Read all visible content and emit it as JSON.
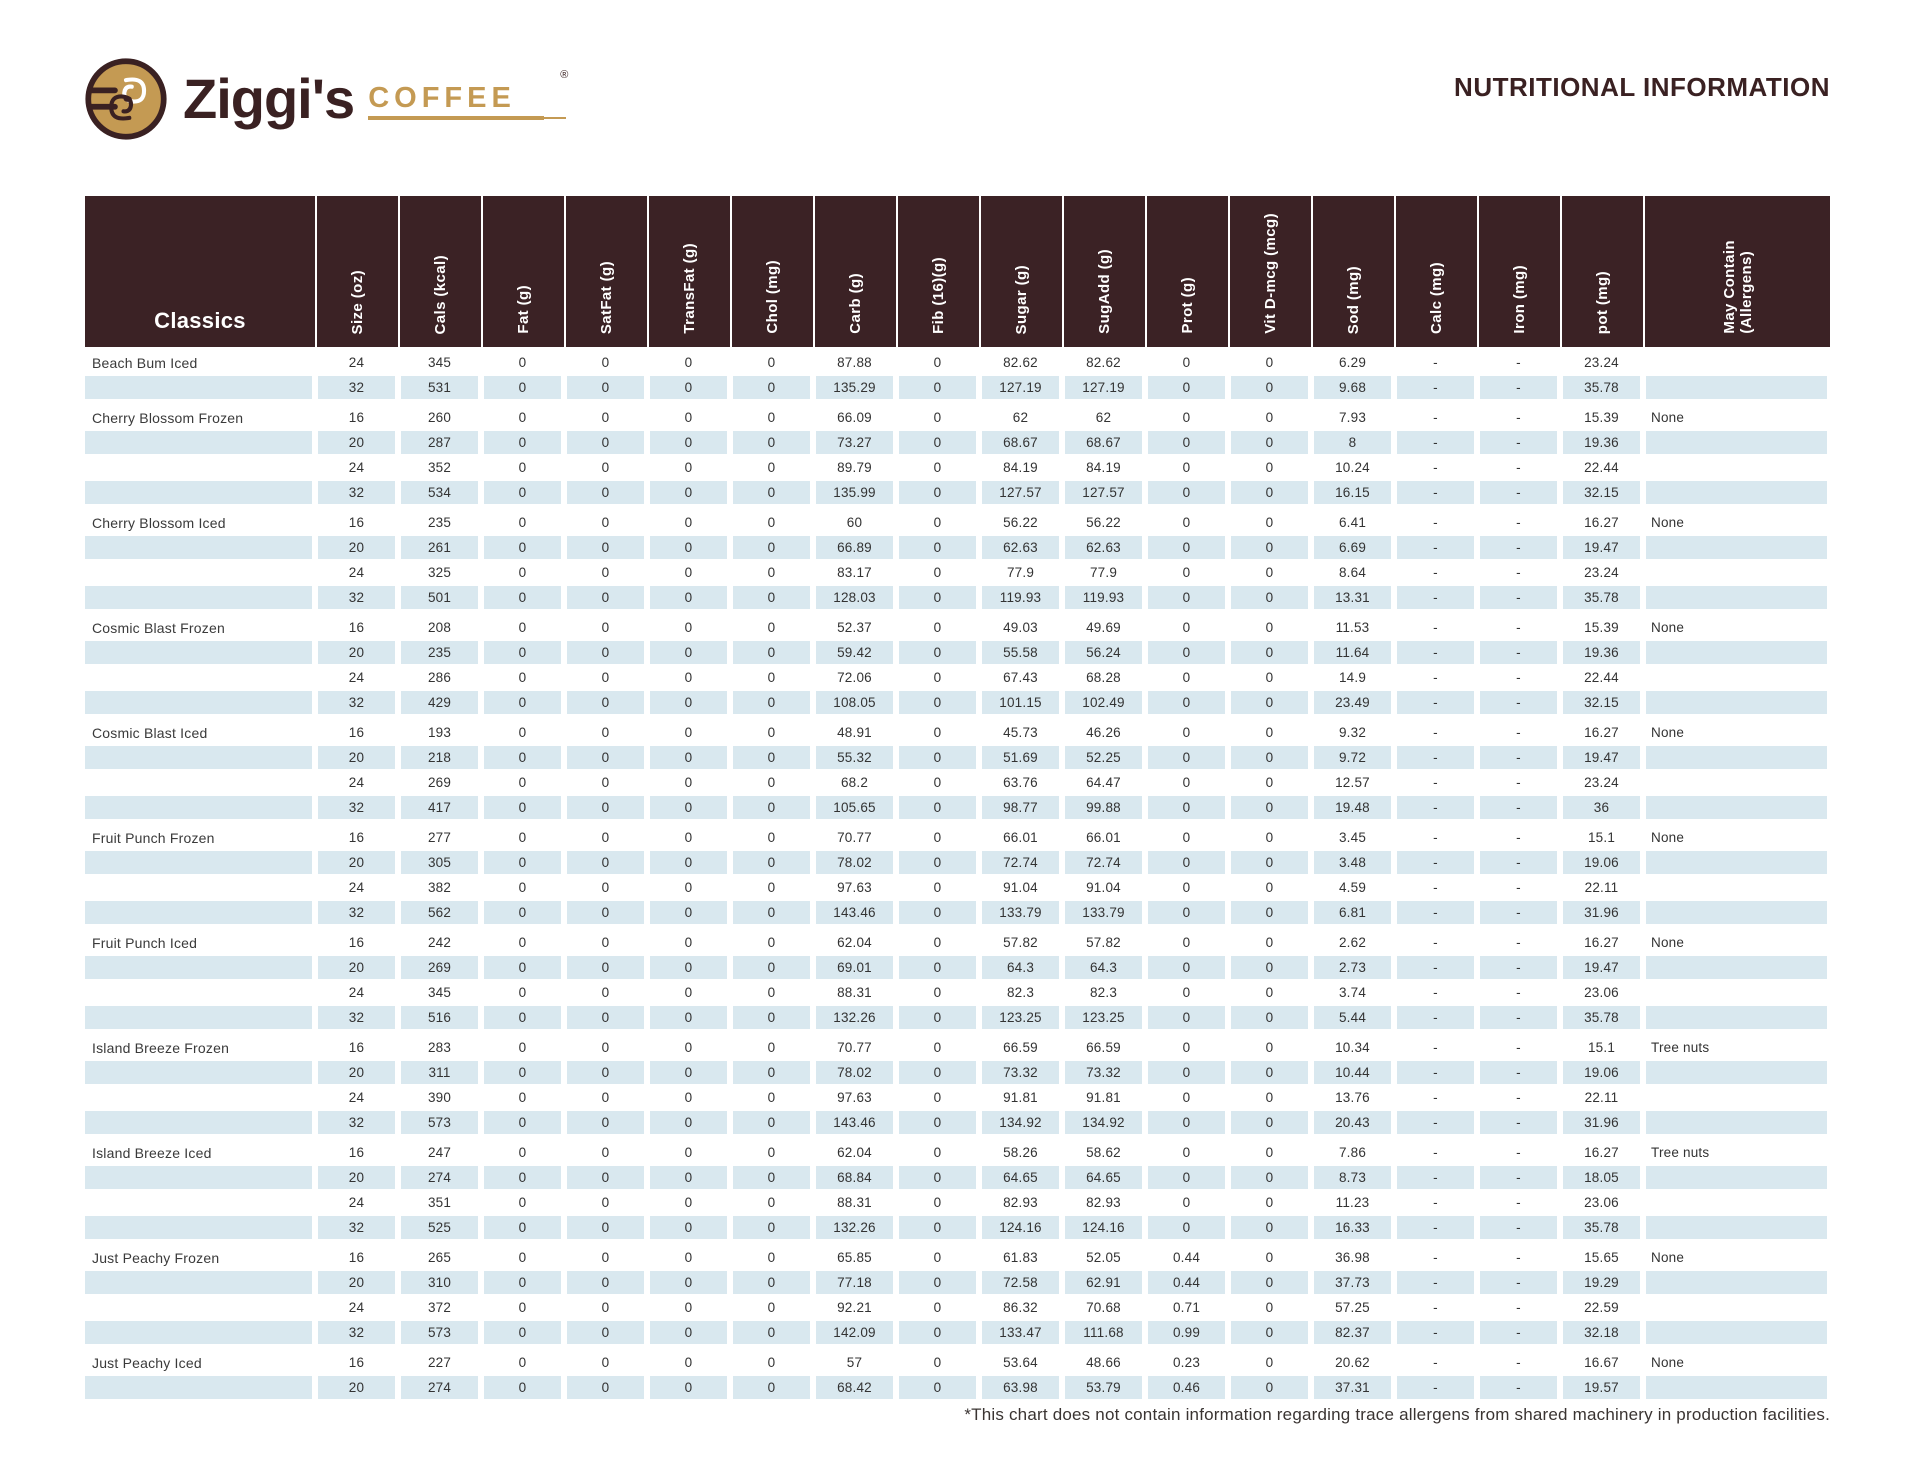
{
  "brand": {
    "name": "Ziggi's",
    "word": "COFFEE",
    "reg": "®"
  },
  "page_title": "NUTRITIONAL INFORMATION",
  "colors": {
    "brown": "#3B2225",
    "stripe": "#D9E8EF",
    "gold": "#C49A53"
  },
  "table": {
    "category_header": "Classics",
    "columns": [
      "Size (oz)",
      "Cals (kcal)",
      "Fat (g)",
      "SatFat (g)",
      "TransFat (g)",
      "Chol (mg)",
      "Carb (g)",
      "Fib (16)(g)",
      "Sugar (g)",
      "SugAdd (g)",
      "Prot (g)",
      "Vit D-mcg (mcg)",
      "Sod (mg)",
      "Calc (mg)",
      "Iron (mg)",
      "pot (mg)",
      "May Contain\n(Allergens)"
    ],
    "groups": [
      {
        "name": "Beach Bum Iced",
        "rows": [
          [
            "24",
            "345",
            "0",
            "0",
            "0",
            "0",
            "87.88",
            "0",
            "82.62",
            "82.62",
            "0",
            "0",
            "6.29",
            "-",
            "-",
            "23.24",
            ""
          ],
          [
            "32",
            "531",
            "0",
            "0",
            "0",
            "0",
            "135.29",
            "0",
            "127.19",
            "127.19",
            "0",
            "0",
            "9.68",
            "-",
            "-",
            "35.78",
            ""
          ]
        ]
      },
      {
        "name": "Cherry Blossom Frozen",
        "rows": [
          [
            "16",
            "260",
            "0",
            "0",
            "0",
            "0",
            "66.09",
            "0",
            "62",
            "62",
            "0",
            "0",
            "7.93",
            "-",
            "-",
            "15.39",
            "None"
          ],
          [
            "20",
            "287",
            "0",
            "0",
            "0",
            "0",
            "73.27",
            "0",
            "68.67",
            "68.67",
            "0",
            "0",
            "8",
            "-",
            "-",
            "19.36",
            ""
          ],
          [
            "24",
            "352",
            "0",
            "0",
            "0",
            "0",
            "89.79",
            "0",
            "84.19",
            "84.19",
            "0",
            "0",
            "10.24",
            "-",
            "-",
            "22.44",
            ""
          ],
          [
            "32",
            "534",
            "0",
            "0",
            "0",
            "0",
            "135.99",
            "0",
            "127.57",
            "127.57",
            "0",
            "0",
            "16.15",
            "-",
            "-",
            "32.15",
            ""
          ]
        ]
      },
      {
        "name": "Cherry Blossom Iced",
        "rows": [
          [
            "16",
            "235",
            "0",
            "0",
            "0",
            "0",
            "60",
            "0",
            "56.22",
            "56.22",
            "0",
            "0",
            "6.41",
            "-",
            "-",
            "16.27",
            "None"
          ],
          [
            "20",
            "261",
            "0",
            "0",
            "0",
            "0",
            "66.89",
            "0",
            "62.63",
            "62.63",
            "0",
            "0",
            "6.69",
            "-",
            "-",
            "19.47",
            ""
          ],
          [
            "24",
            "325",
            "0",
            "0",
            "0",
            "0",
            "83.17",
            "0",
            "77.9",
            "77.9",
            "0",
            "0",
            "8.64",
            "-",
            "-",
            "23.24",
            ""
          ],
          [
            "32",
            "501",
            "0",
            "0",
            "0",
            "0",
            "128.03",
            "0",
            "119.93",
            "119.93",
            "0",
            "0",
            "13.31",
            "-",
            "-",
            "35.78",
            ""
          ]
        ]
      },
      {
        "name": "Cosmic Blast Frozen",
        "rows": [
          [
            "16",
            "208",
            "0",
            "0",
            "0",
            "0",
            "52.37",
            "0",
            "49.03",
            "49.69",
            "0",
            "0",
            "11.53",
            "-",
            "-",
            "15.39",
            "None"
          ],
          [
            "20",
            "235",
            "0",
            "0",
            "0",
            "0",
            "59.42",
            "0",
            "55.58",
            "56.24",
            "0",
            "0",
            "11.64",
            "-",
            "-",
            "19.36",
            ""
          ],
          [
            "24",
            "286",
            "0",
            "0",
            "0",
            "0",
            "72.06",
            "0",
            "67.43",
            "68.28",
            "0",
            "0",
            "14.9",
            "-",
            "-",
            "22.44",
            ""
          ],
          [
            "32",
            "429",
            "0",
            "0",
            "0",
            "0",
            "108.05",
            "0",
            "101.15",
            "102.49",
            "0",
            "0",
            "23.49",
            "-",
            "-",
            "32.15",
            ""
          ]
        ]
      },
      {
        "name": "Cosmic Blast Iced",
        "rows": [
          [
            "16",
            "193",
            "0",
            "0",
            "0",
            "0",
            "48.91",
            "0",
            "45.73",
            "46.26",
            "0",
            "0",
            "9.32",
            "-",
            "-",
            "16.27",
            "None"
          ],
          [
            "20",
            "218",
            "0",
            "0",
            "0",
            "0",
            "55.32",
            "0",
            "51.69",
            "52.25",
            "0",
            "0",
            "9.72",
            "-",
            "-",
            "19.47",
            ""
          ],
          [
            "24",
            "269",
            "0",
            "0",
            "0",
            "0",
            "68.2",
            "0",
            "63.76",
            "64.47",
            "0",
            "0",
            "12.57",
            "-",
            "-",
            "23.24",
            ""
          ],
          [
            "32",
            "417",
            "0",
            "0",
            "0",
            "0",
            "105.65",
            "0",
            "98.77",
            "99.88",
            "0",
            "0",
            "19.48",
            "-",
            "-",
            "36",
            ""
          ]
        ]
      },
      {
        "name": "Fruit Punch Frozen",
        "rows": [
          [
            "16",
            "277",
            "0",
            "0",
            "0",
            "0",
            "70.77",
            "0",
            "66.01",
            "66.01",
            "0",
            "0",
            "3.45",
            "-",
            "-",
            "15.1",
            "None"
          ],
          [
            "20",
            "305",
            "0",
            "0",
            "0",
            "0",
            "78.02",
            "0",
            "72.74",
            "72.74",
            "0",
            "0",
            "3.48",
            "-",
            "-",
            "19.06",
            ""
          ],
          [
            "24",
            "382",
            "0",
            "0",
            "0",
            "0",
            "97.63",
            "0",
            "91.04",
            "91.04",
            "0",
            "0",
            "4.59",
            "-",
            "-",
            "22.11",
            ""
          ],
          [
            "32",
            "562",
            "0",
            "0",
            "0",
            "0",
            "143.46",
            "0",
            "133.79",
            "133.79",
            "0",
            "0",
            "6.81",
            "-",
            "-",
            "31.96",
            ""
          ]
        ]
      },
      {
        "name": "Fruit Punch Iced",
        "rows": [
          [
            "16",
            "242",
            "0",
            "0",
            "0",
            "0",
            "62.04",
            "0",
            "57.82",
            "57.82",
            "0",
            "0",
            "2.62",
            "-",
            "-",
            "16.27",
            "None"
          ],
          [
            "20",
            "269",
            "0",
            "0",
            "0",
            "0",
            "69.01",
            "0",
            "64.3",
            "64.3",
            "0",
            "0",
            "2.73",
            "-",
            "-",
            "19.47",
            ""
          ],
          [
            "24",
            "345",
            "0",
            "0",
            "0",
            "0",
            "88.31",
            "0",
            "82.3",
            "82.3",
            "0",
            "0",
            "3.74",
            "-",
            "-",
            "23.06",
            ""
          ],
          [
            "32",
            "516",
            "0",
            "0",
            "0",
            "0",
            "132.26",
            "0",
            "123.25",
            "123.25",
            "0",
            "0",
            "5.44",
            "-",
            "-",
            "35.78",
            ""
          ]
        ]
      },
      {
        "name": "Island Breeze Frozen",
        "rows": [
          [
            "16",
            "283",
            "0",
            "0",
            "0",
            "0",
            "70.77",
            "0",
            "66.59",
            "66.59",
            "0",
            "0",
            "10.34",
            "-",
            "-",
            "15.1",
            "Tree nuts"
          ],
          [
            "20",
            "311",
            "0",
            "0",
            "0",
            "0",
            "78.02",
            "0",
            "73.32",
            "73.32",
            "0",
            "0",
            "10.44",
            "-",
            "-",
            "19.06",
            ""
          ],
          [
            "24",
            "390",
            "0",
            "0",
            "0",
            "0",
            "97.63",
            "0",
            "91.81",
            "91.81",
            "0",
            "0",
            "13.76",
            "-",
            "-",
            "22.11",
            ""
          ],
          [
            "32",
            "573",
            "0",
            "0",
            "0",
            "0",
            "143.46",
            "0",
            "134.92",
            "134.92",
            "0",
            "0",
            "20.43",
            "-",
            "-",
            "31.96",
            ""
          ]
        ]
      },
      {
        "name": "Island Breeze Iced",
        "rows": [
          [
            "16",
            "247",
            "0",
            "0",
            "0",
            "0",
            "62.04",
            "0",
            "58.26",
            "58.62",
            "0",
            "0",
            "7.86",
            "-",
            "-",
            "16.27",
            "Tree nuts"
          ],
          [
            "20",
            "274",
            "0",
            "0",
            "0",
            "0",
            "68.84",
            "0",
            "64.65",
            "64.65",
            "0",
            "0",
            "8.73",
            "-",
            "-",
            "18.05",
            ""
          ],
          [
            "24",
            "351",
            "0",
            "0",
            "0",
            "0",
            "88.31",
            "0",
            "82.93",
            "82.93",
            "0",
            "0",
            "11.23",
            "-",
            "-",
            "23.06",
            ""
          ],
          [
            "32",
            "525",
            "0",
            "0",
            "0",
            "0",
            "132.26",
            "0",
            "124.16",
            "124.16",
            "0",
            "0",
            "16.33",
            "-",
            "-",
            "35.78",
            ""
          ]
        ]
      },
      {
        "name": "Just Peachy Frozen",
        "rows": [
          [
            "16",
            "265",
            "0",
            "0",
            "0",
            "0",
            "65.85",
            "0",
            "61.83",
            "52.05",
            "0.44",
            "0",
            "36.98",
            "-",
            "-",
            "15.65",
            "None"
          ],
          [
            "20",
            "310",
            "0",
            "0",
            "0",
            "0",
            "77.18",
            "0",
            "72.58",
            "62.91",
            "0.44",
            "0",
            "37.73",
            "-",
            "-",
            "19.29",
            ""
          ],
          [
            "24",
            "372",
            "0",
            "0",
            "0",
            "0",
            "92.21",
            "0",
            "86.32",
            "70.68",
            "0.71",
            "0",
            "57.25",
            "-",
            "-",
            "22.59",
            ""
          ],
          [
            "32",
            "573",
            "0",
            "0",
            "0",
            "0",
            "142.09",
            "0",
            "133.47",
            "111.68",
            "0.99",
            "0",
            "82.37",
            "-",
            "-",
            "32.18",
            ""
          ]
        ]
      },
      {
        "name": "Just Peachy Iced",
        "rows": [
          [
            "16",
            "227",
            "0",
            "0",
            "0",
            "0",
            "57",
            "0",
            "53.64",
            "48.66",
            "0.23",
            "0",
            "20.62",
            "-",
            "-",
            "16.67",
            "None"
          ],
          [
            "20",
            "274",
            "0",
            "0",
            "0",
            "0",
            "68.42",
            "0",
            "63.98",
            "53.79",
            "0.46",
            "0",
            "37.31",
            "-",
            "-",
            "19.57",
            ""
          ]
        ]
      }
    ]
  },
  "footnote": "*This chart does not contain information regarding trace allergens from shared machinery in production facilities."
}
